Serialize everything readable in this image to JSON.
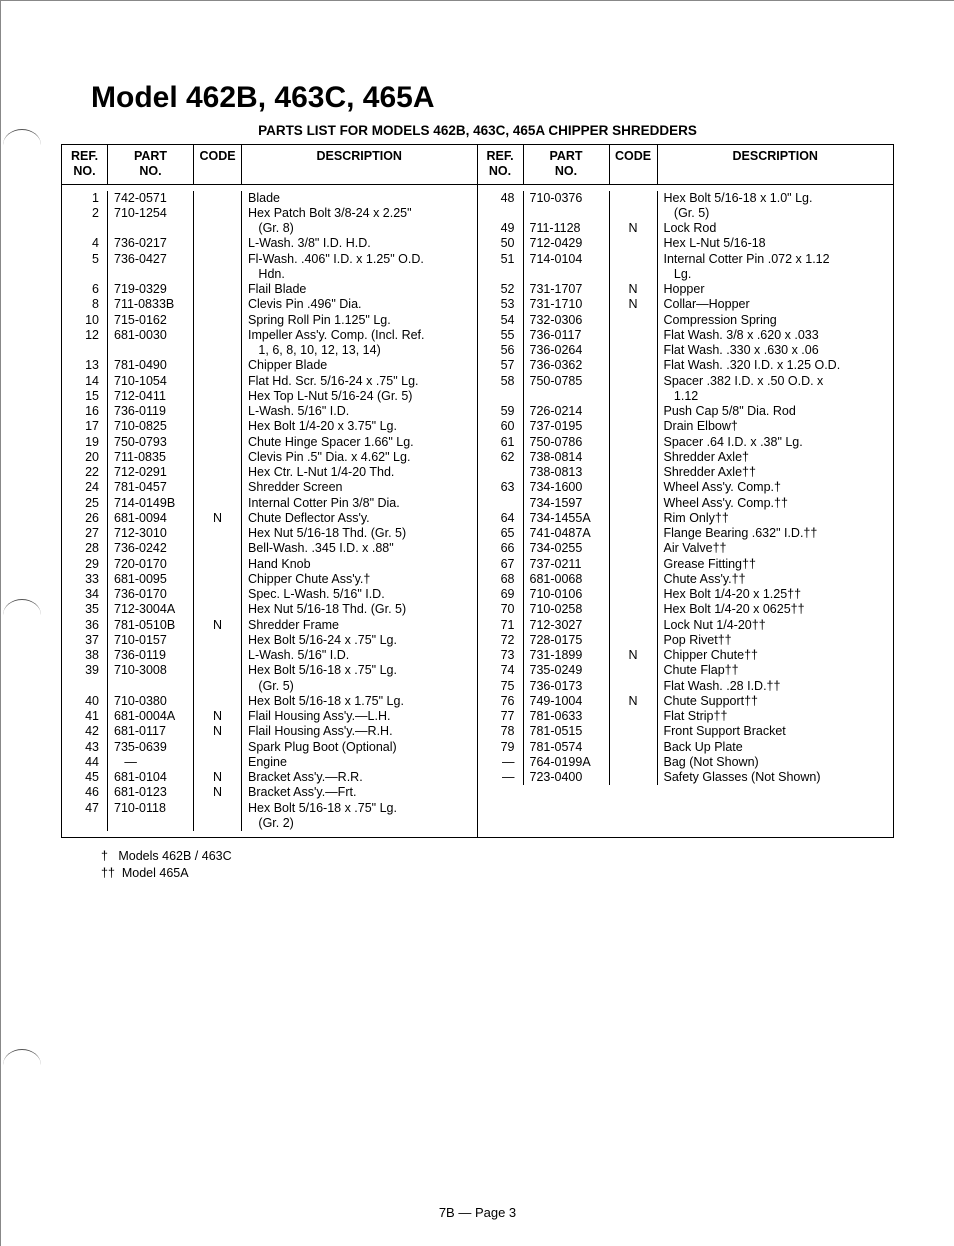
{
  "title": "Model 462B, 463C, 465A",
  "subtitle": "PARTS LIST FOR MODELS 462B, 463C, 465A CHIPPER SHREDDERS",
  "headers": {
    "ref": "REF.\nNO.",
    "part": "PART\nNO.",
    "code": "CODE",
    "desc": "DESCRIPTION"
  },
  "left": [
    {
      "r": "1",
      "p": "742-0571",
      "c": "",
      "d": "Blade"
    },
    {
      "r": "2",
      "p": "710-1254",
      "c": "",
      "d": "Hex Patch Bolt 3/8-24 x 2.25\""
    },
    {
      "r": "",
      "p": "",
      "c": "",
      "d": "   (Gr. 8)"
    },
    {
      "r": "4",
      "p": "736-0217",
      "c": "",
      "d": "L-Wash. 3/8\" I.D. H.D."
    },
    {
      "r": "5",
      "p": "736-0427",
      "c": "",
      "d": "Fl-Wash. .406\" I.D. x 1.25\" O.D."
    },
    {
      "r": "",
      "p": "",
      "c": "",
      "d": "   Hdn."
    },
    {
      "r": "6",
      "p": "719-0329",
      "c": "",
      "d": "Flail Blade"
    },
    {
      "r": "8",
      "p": "711-0833B",
      "c": "",
      "d": "Clevis Pin .496\" Dia."
    },
    {
      "r": "10",
      "p": "715-0162",
      "c": "",
      "d": "Spring Roll Pin 1.125\" Lg."
    },
    {
      "r": "12",
      "p": "681-0030",
      "c": "",
      "d": "Impeller Ass'y. Comp. (Incl. Ref."
    },
    {
      "r": "",
      "p": "",
      "c": "",
      "d": "   1, 6, 8, 10, 12, 13, 14)"
    },
    {
      "r": "13",
      "p": "781-0490",
      "c": "",
      "d": "Chipper Blade"
    },
    {
      "r": "14",
      "p": "710-1054",
      "c": "",
      "d": "Flat Hd. Scr. 5/16-24 x .75\" Lg."
    },
    {
      "r": "15",
      "p": "712-0411",
      "c": "",
      "d": "Hex Top L-Nut 5/16-24 (Gr. 5)"
    },
    {
      "r": "16",
      "p": "736-0119",
      "c": "",
      "d": "L-Wash. 5/16\" I.D."
    },
    {
      "r": "17",
      "p": "710-0825",
      "c": "",
      "d": "Hex Bolt 1/4-20 x 3.75\" Lg."
    },
    {
      "r": "19",
      "p": "750-0793",
      "c": "",
      "d": "Chute Hinge Spacer 1.66\" Lg."
    },
    {
      "r": "20",
      "p": "711-0835",
      "c": "",
      "d": "Clevis Pin .5\" Dia. x 4.62\" Lg."
    },
    {
      "r": "22",
      "p": "712-0291",
      "c": "",
      "d": "Hex Ctr. L-Nut 1/4-20 Thd."
    },
    {
      "r": "24",
      "p": "781-0457",
      "c": "",
      "d": "Shredder Screen"
    },
    {
      "r": "25",
      "p": "714-0149B",
      "c": "",
      "d": "Internal Cotter Pin 3/8\" Dia."
    },
    {
      "r": "26",
      "p": "681-0094",
      "c": "N",
      "d": "Chute Deflector Ass'y."
    },
    {
      "r": "27",
      "p": "712-3010",
      "c": "",
      "d": "Hex Nut 5/16-18 Thd. (Gr. 5)"
    },
    {
      "r": "28",
      "p": "736-0242",
      "c": "",
      "d": "Bell-Wash. .345 I.D. x .88\""
    },
    {
      "r": "29",
      "p": "720-0170",
      "c": "",
      "d": "Hand Knob"
    },
    {
      "r": "33",
      "p": "681-0095",
      "c": "",
      "d": "Chipper Chute Ass'y.†"
    },
    {
      "r": "34",
      "p": "736-0170",
      "c": "",
      "d": "Spec. L-Wash. 5/16\" I.D."
    },
    {
      "r": "35",
      "p": "712-3004A",
      "c": "",
      "d": "Hex Nut 5/16-18 Thd. (Gr. 5)"
    },
    {
      "r": "36",
      "p": "781-0510B",
      "c": "N",
      "d": "Shredder Frame"
    },
    {
      "r": "37",
      "p": "710-0157",
      "c": "",
      "d": "Hex Bolt 5/16-24 x .75\" Lg."
    },
    {
      "r": "38",
      "p": "736-0119",
      "c": "",
      "d": "L-Wash. 5/16\" I.D."
    },
    {
      "r": "39",
      "p": "710-3008",
      "c": "",
      "d": "Hex Bolt 5/16-18 x .75\" Lg."
    },
    {
      "r": "",
      "p": "",
      "c": "",
      "d": "   (Gr. 5)"
    },
    {
      "r": "40",
      "p": "710-0380",
      "c": "",
      "d": "Hex Bolt 5/16-18 x 1.75\" Lg."
    },
    {
      "r": "41",
      "p": "681-0004A",
      "c": "N",
      "d": "Flail Housing Ass'y.—L.H."
    },
    {
      "r": "42",
      "p": "681-0117",
      "c": "N",
      "d": "Flail Housing Ass'y.—R.H."
    },
    {
      "r": "43",
      "p": "735-0639",
      "c": "",
      "d": "Spark Plug Boot (Optional)"
    },
    {
      "r": "44",
      "p": "   —",
      "c": "",
      "d": "Engine"
    },
    {
      "r": "45",
      "p": "681-0104",
      "c": "N",
      "d": "Bracket Ass'y.—R.R."
    },
    {
      "r": "46",
      "p": "681-0123",
      "c": "N",
      "d": "Bracket Ass'y.—Frt."
    },
    {
      "r": "47",
      "p": "710-0118",
      "c": "",
      "d": "Hex Bolt 5/16-18 x .75\" Lg."
    },
    {
      "r": "",
      "p": "",
      "c": "",
      "d": "   (Gr. 2)"
    }
  ],
  "right": [
    {
      "r": "48",
      "p": "710-0376",
      "c": "",
      "d": "Hex Bolt 5/16-18 x 1.0\" Lg."
    },
    {
      "r": "",
      "p": "",
      "c": "",
      "d": "   (Gr. 5)"
    },
    {
      "r": "49",
      "p": "711-1128",
      "c": "N",
      "d": "Lock Rod"
    },
    {
      "r": "50",
      "p": "712-0429",
      "c": "",
      "d": "Hex L-Nut 5/16-18"
    },
    {
      "r": "51",
      "p": "714-0104",
      "c": "",
      "d": "Internal Cotter Pin .072 x 1.12"
    },
    {
      "r": "",
      "p": "",
      "c": "",
      "d": "   Lg."
    },
    {
      "r": "52",
      "p": "731-1707",
      "c": "N",
      "d": "Hopper"
    },
    {
      "r": "53",
      "p": "731-1710",
      "c": "N",
      "d": "Collar—Hopper"
    },
    {
      "r": "54",
      "p": "732-0306",
      "c": "",
      "d": "Compression Spring"
    },
    {
      "r": "55",
      "p": "736-0117",
      "c": "",
      "d": "Flat Wash. 3/8 x .620 x .033"
    },
    {
      "r": "56",
      "p": "736-0264",
      "c": "",
      "d": "Flat Wash. .330 x .630 x .06"
    },
    {
      "r": "57",
      "p": "736-0362",
      "c": "",
      "d": "Flat Wash. .320 I.D. x 1.25 O.D."
    },
    {
      "r": "58",
      "p": "750-0785",
      "c": "",
      "d": "Spacer .382 I.D. x .50 O.D. x"
    },
    {
      "r": "",
      "p": "",
      "c": "",
      "d": "   1.12"
    },
    {
      "r": "59",
      "p": "726-0214",
      "c": "",
      "d": "Push Cap 5/8\" Dia. Rod"
    },
    {
      "r": "60",
      "p": "737-0195",
      "c": "",
      "d": "Drain Elbow†"
    },
    {
      "r": "61",
      "p": "750-0786",
      "c": "",
      "d": "Spacer .64 I.D. x .38\" Lg."
    },
    {
      "r": "62",
      "p": "738-0814",
      "c": "",
      "d": "Shredder Axle†"
    },
    {
      "r": "",
      "p": "738-0813",
      "c": "",
      "d": "Shredder Axle††"
    },
    {
      "r": "63",
      "p": "734-1600",
      "c": "",
      "d": "Wheel Ass'y. Comp.†"
    },
    {
      "r": "",
      "p": "734-1597",
      "c": "",
      "d": "Wheel Ass'y. Comp.††"
    },
    {
      "r": "64",
      "p": "734-1455A",
      "c": "",
      "d": "Rim Only††"
    },
    {
      "r": "65",
      "p": "741-0487A",
      "c": "",
      "d": "Flange Bearing .632\" I.D.††"
    },
    {
      "r": "66",
      "p": "734-0255",
      "c": "",
      "d": "Air Valve††"
    },
    {
      "r": "67",
      "p": "737-0211",
      "c": "",
      "d": "Grease Fitting††"
    },
    {
      "r": "68",
      "p": "681-0068",
      "c": "",
      "d": "Chute Ass'y.††"
    },
    {
      "r": "69",
      "p": "710-0106",
      "c": "",
      "d": "Hex Bolt 1/4-20 x 1.25††"
    },
    {
      "r": "70",
      "p": "710-0258",
      "c": "",
      "d": "Hex Bolt 1/4-20 x 0625††"
    },
    {
      "r": "71",
      "p": "712-3027",
      "c": "",
      "d": "Lock Nut 1/4-20††"
    },
    {
      "r": "72",
      "p": "728-0175",
      "c": "",
      "d": "Pop Rivet††"
    },
    {
      "r": "73",
      "p": "731-1899",
      "c": "N",
      "d": "Chipper Chute††"
    },
    {
      "r": "74",
      "p": "735-0249",
      "c": "",
      "d": "Chute Flap††"
    },
    {
      "r": "75",
      "p": "736-0173",
      "c": "",
      "d": "Flat Wash. .28 I.D.††"
    },
    {
      "r": "76",
      "p": "749-1004",
      "c": "N",
      "d": "Chute Support††"
    },
    {
      "r": "77",
      "p": "781-0633",
      "c": "",
      "d": "Flat Strip††"
    },
    {
      "r": "78",
      "p": "781-0515",
      "c": "",
      "d": "Front Support Bracket"
    },
    {
      "r": "79",
      "p": "781-0574",
      "c": "",
      "d": "Back Up Plate"
    },
    {
      "r": "—",
      "p": "764-0199A",
      "c": "",
      "d": "Bag (Not Shown)"
    },
    {
      "r": "—",
      "p": "723-0400",
      "c": "",
      "d": "Safety Glasses (Not Shown)"
    }
  ],
  "notes": [
    "†   Models 462B / 463C",
    "††  Model 465A"
  ],
  "footer": "7B — Page 3"
}
